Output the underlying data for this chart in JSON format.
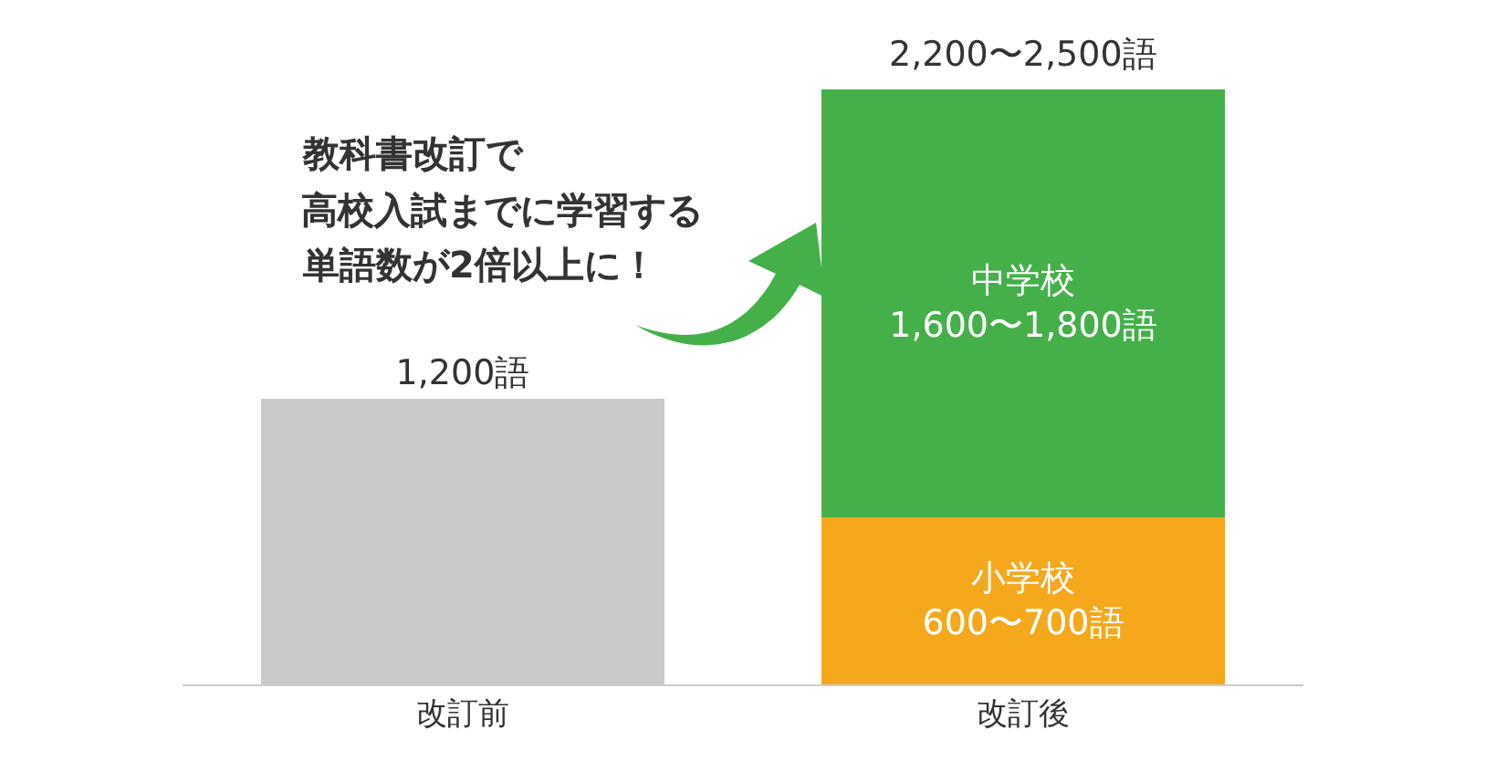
{
  "chart_data": {
    "type": "bar",
    "stacked": true,
    "categories": [
      "改訂前",
      "改訂後"
    ],
    "series": [
      {
        "color": "#c8c9cb",
        "values": [
          1200,
          null
        ],
        "value_labels": [
          "1,200語",
          null
        ]
      },
      {
        "name": "小学校",
        "color": "#f5a81c",
        "values": [
          null,
          700
        ],
        "value_labels": [
          null,
          "600〜700語"
        ]
      },
      {
        "name": "中学校",
        "color": "#45b04a",
        "values": [
          null,
          1800
        ],
        "value_labels": [
          null,
          "1,600〜1,800語"
        ]
      }
    ],
    "totals": [
      null,
      "2,200〜2,500語"
    ],
    "annotations": [
      "教科書改訂で",
      "高校入試までに学習する",
      "単語数が2倍以上に！"
    ]
  }
}
